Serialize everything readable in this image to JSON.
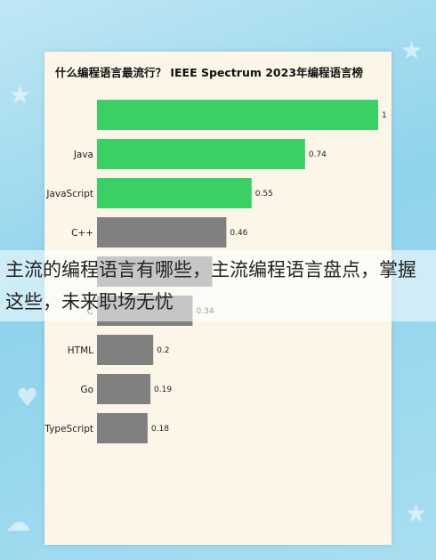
{
  "page": {
    "overlay_caption": "主流的编程语言有哪些，主流编程语言盘点，掌握这些，未来职场无忧"
  },
  "chart_data": {
    "type": "bar",
    "orientation": "horizontal",
    "title": "什么编程语言最流行？ IEEE Spectrum 2023年编程语言榜",
    "categories": [
      "",
      "Java",
      "JavaScript",
      "C++",
      "",
      "C",
      "HTML",
      "Go",
      "TypeScript"
    ],
    "values": [
      1,
      0.74,
      0.55,
      0.46,
      0.41,
      0.34,
      0.2,
      0.19,
      0.18
    ],
    "value_labels": [
      "1",
      "0.74",
      "0.55",
      "0.46",
      "",
      "0.34",
      "0.2",
      "0.19",
      "0.18"
    ],
    "xlim": [
      0,
      1
    ],
    "grid": false,
    "colors": [
      "#3ccf66",
      "#3ccf66",
      "#3ccf66",
      "#808080",
      "#808080",
      "#808080",
      "#808080",
      "#808080",
      "#808080"
    ]
  }
}
